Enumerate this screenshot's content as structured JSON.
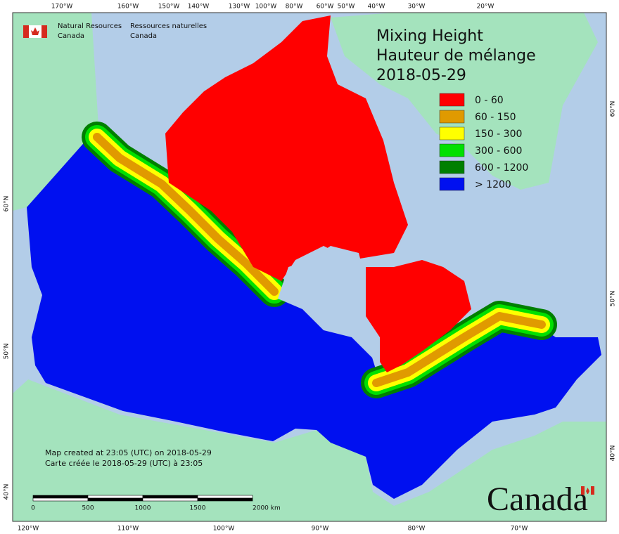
{
  "header": {
    "org_en": [
      "Natural Resources",
      "Canada"
    ],
    "org_fr": [
      "Ressources naturelles",
      "Canada"
    ]
  },
  "title": [
    "Mixing Height",
    "Hauteur de mélange",
    "2018-05-29"
  ],
  "legend": [
    {
      "label": "0 - 60",
      "color": "#ff0000"
    },
    {
      "label": "60 - 150",
      "color": "#e09a00"
    },
    {
      "label": "150 - 300",
      "color": "#ffff00"
    },
    {
      "label": "300 - 600",
      "color": "#00e000"
    },
    {
      "label": "600 - 1200",
      "color": "#007f00"
    },
    {
      "label": "> 1200",
      "color": "#0010f0"
    }
  ],
  "top_labels": [
    "170°W",
    "160°W",
    "150°W",
    "140°W",
    "130°W",
    "100°W",
    "80°W",
    "60°W",
    "50°W",
    "40°W",
    "30°W",
    "20°W"
  ],
  "bottom_labels": [
    "120°W",
    "110°W",
    "100°W",
    "90°W",
    "80°W",
    "70°W"
  ],
  "left_labels": [
    "60°N",
    "50°N",
    "40°N"
  ],
  "right_labels": [
    "60°N",
    "50°N",
    "40°N"
  ],
  "notes": [
    "Map created at 23:05 (UTC) on 2018-05-29",
    "Carte créée le 2018-05-29 (UTC) à 23:05"
  ],
  "scale": [
    "0",
    "500",
    "1000",
    "1500",
    "2000  km"
  ],
  "wordmark": "Canada"
}
